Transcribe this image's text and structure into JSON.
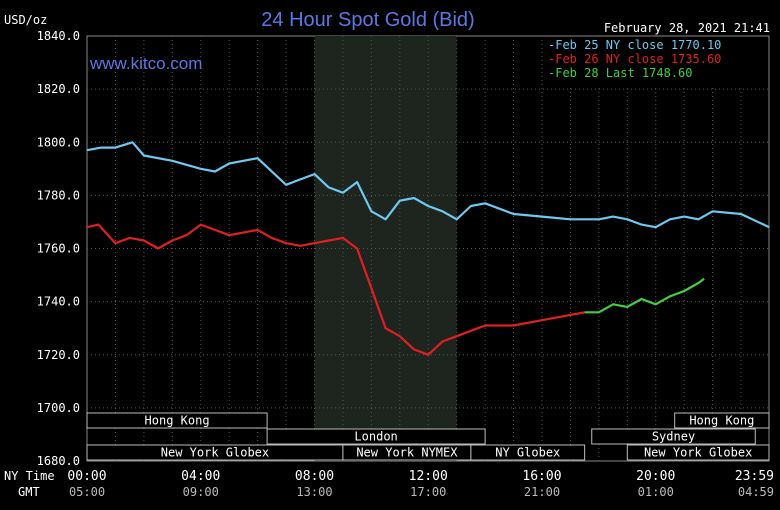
{
  "header": {
    "unit_label": "USD/oz",
    "title": "24 Hour Spot Gold (Bid)",
    "datetime": "February 28, 2021 21:41",
    "watermark": "www.kitco.com"
  },
  "legend": [
    {
      "text": "Feb 25 NY close 1770.10",
      "color": "#6ec8f0"
    },
    {
      "text": "Feb 26 NY close 1735.60",
      "color": "#e02020"
    },
    {
      "text": "Feb 28 Last 1748.60",
      "color": "#40d040"
    }
  ],
  "sessions": [
    {
      "label": "Hong Kong",
      "start": "00:00",
      "end": "06:20"
    },
    {
      "label": "Hong Kong",
      "start": "20:40",
      "end": "24:00"
    },
    {
      "label": "London",
      "start": "06:20",
      "end": "14:00"
    },
    {
      "label": "Sydney",
      "start": "17:45",
      "end": "23:30"
    },
    {
      "label": "New York Globex",
      "start": "00:00",
      "end": "09:00"
    },
    {
      "label": "New York NYMEX",
      "start": "09:00",
      "end": "13:30"
    },
    {
      "label": "NY Globex",
      "start": "13:30",
      "end": "17:30"
    },
    {
      "label": "New York Globex",
      "start": "19:00",
      "end": "24:00"
    }
  ],
  "bottom_axis": {
    "ny_label": "NY Time",
    "gmt_label": "GMT",
    "ny_ticks": [
      "00:00",
      "04:00",
      "08:00",
      "12:00",
      "16:00",
      "20:00",
      "23:59"
    ],
    "gmt_ticks": [
      "05:00",
      "09:00",
      "13:00",
      "17:00",
      "21:00",
      "01:00",
      "04:59"
    ]
  },
  "chart_data": {
    "type": "line",
    "title": "24 Hour Spot Gold (Bid)",
    "ylabel": "USD/oz",
    "xlabel": "NY Time",
    "ylim": [
      1680,
      1840
    ],
    "yticks": [
      "1840.0",
      "1820.0",
      "1800.0",
      "1780.0",
      "1760.0",
      "1740.0",
      "1720.0",
      "1700.0",
      "1680.0"
    ],
    "grid": true,
    "legend_position": "top-right",
    "shaded_region_hours": [
      8.0,
      13.0
    ],
    "series": [
      {
        "name": "Feb 25 NY close 1770.10",
        "color": "#6ec8f0",
        "x_hours": [
          0,
          0.5,
          1.0,
          1.6,
          2.0,
          3.0,
          4.0,
          4.5,
          5.0,
          5.5,
          6.0,
          7.0,
          7.5,
          8.0,
          8.5,
          9.0,
          9.5,
          10.0,
          10.5,
          11.0,
          11.5,
          12.0,
          12.5,
          13.0,
          13.5,
          14.0,
          15.0,
          16.0,
          17.0,
          18.0,
          18.5,
          19.0,
          19.5,
          20.0,
          20.5,
          21.0,
          21.5,
          22.0,
          23.0,
          23.99
        ],
        "values": [
          1797,
          1798,
          1798,
          1800,
          1795,
          1793,
          1790,
          1789,
          1792,
          1793,
          1794,
          1784,
          1786,
          1788,
          1783,
          1781,
          1785,
          1774,
          1771,
          1778,
          1779,
          1776,
          1774,
          1771,
          1776,
          1777,
          1773,
          1772,
          1771,
          1771,
          1772,
          1771,
          1769,
          1768,
          1771,
          1772,
          1771,
          1774,
          1773,
          1768
        ]
      },
      {
        "name": "Feb 26 NY close 1735.60",
        "color": "#e02020",
        "x_hours": [
          0,
          0.4,
          1.0,
          1.5,
          2.0,
          2.5,
          3.0,
          3.5,
          4.0,
          4.5,
          5.0,
          6.0,
          6.5,
          7.0,
          7.5,
          8.0,
          8.5,
          9.0,
          9.5,
          10.0,
          10.5,
          11.0,
          11.5,
          12.0,
          12.5,
          13.0,
          13.5,
          14.0,
          15.0,
          16.0,
          16.5,
          17.0,
          17.5
        ],
        "values": [
          1768,
          1769,
          1762,
          1764,
          1763,
          1760,
          1763,
          1765,
          1769,
          1767,
          1765,
          1767,
          1764,
          1762,
          1761,
          1762,
          1763,
          1764,
          1760,
          1745,
          1730,
          1727,
          1722,
          1720,
          1725,
          1727,
          1729,
          1731,
          1731,
          1733,
          1734,
          1735,
          1736
        ]
      },
      {
        "name": "Feb 28 Last 1748.60",
        "color": "#40d040",
        "x_hours": [
          17.5,
          18.0,
          18.5,
          19.0,
          19.5,
          20.0,
          20.5,
          21.0,
          21.5,
          21.7
        ],
        "values": [
          1736,
          1736,
          1739,
          1738,
          1741,
          1739,
          1742,
          1744,
          1747,
          1748.6
        ]
      }
    ]
  }
}
